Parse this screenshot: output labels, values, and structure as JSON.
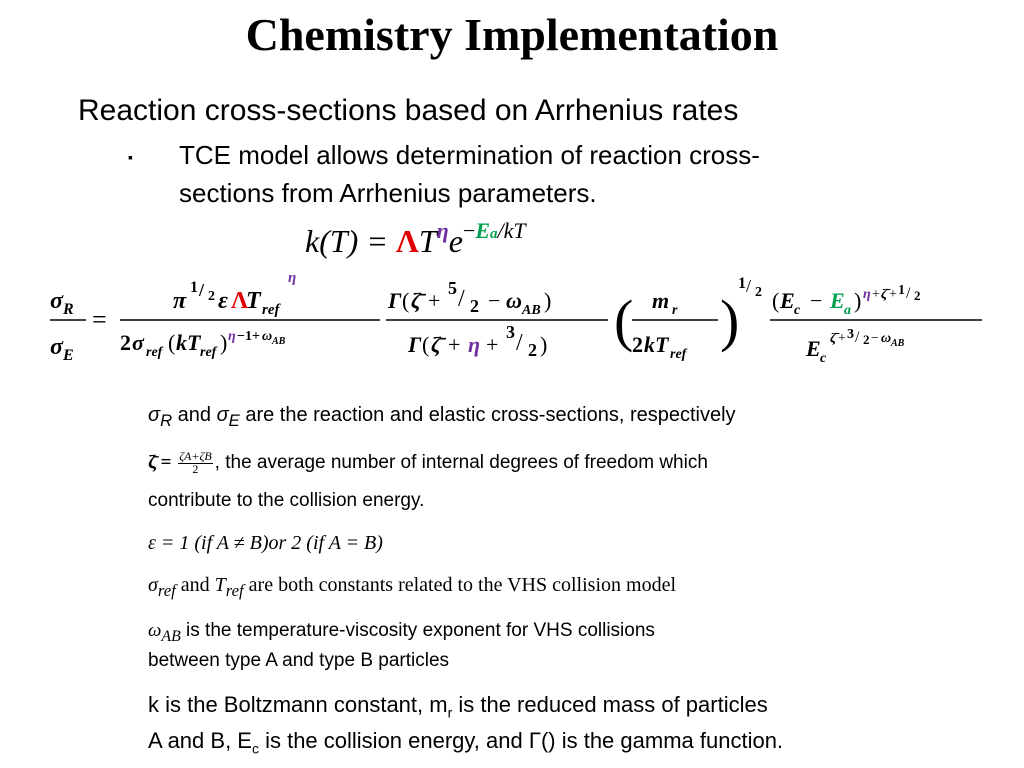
{
  "slide": {
    "title": "Chemistry Implementation",
    "heading": "Reaction cross-sections based on Arrhenius rates",
    "bullet_marker": "▪",
    "bullet_lines": [
      "TCE model allows determination of reaction cross-",
      "sections from Arrhenius parameters."
    ]
  },
  "formulas": {
    "arrhenius": {
      "lhs": "k(T) = ",
      "lambda": "Λ",
      "T": "T",
      "eta": "η",
      "e": "e",
      "minus": "−",
      "Ea": "E",
      "a_sub": "a",
      "over_kT": "/kT"
    }
  },
  "notes": {
    "n1_sigma": "σ",
    "n1_R": "R",
    "n1_and": " and ",
    "n1_E": "E",
    "n1_rest": " are the reaction and elastic cross-sections, respectively",
    "n2_zeta": "ζ̄ = ",
    "n2_num": "ζA+ζB",
    "n2_den": "2",
    "n2_rest": ", the average number of internal degrees of freedom which",
    "n2_line2": "contribute to the collision energy.",
    "n3": "ε = 1 (if A ≠ B)or 2 (if A = B)",
    "n4_sigma": "σ",
    "n4_ref1": "ref",
    "n4_and": " and ",
    "n4_T": "T",
    "n4_ref2": "ref",
    "n4_rest": " are both constants related to the VHS collision model",
    "n5_omega": "ω",
    "n5_AB": "AB",
    "n5_rest": " is the temperature-viscosity exponent for VHS collisions",
    "n5_line2": "between type A and type B particles",
    "n6_a": "k is the Boltzmann constant, m",
    "n6_r": "r",
    "n6_b": " is the reduced mass of particles",
    "n6_c": "A and B, E",
    "n6_cc": "c",
    "n6_d": " is the collision energy, and Γ() is the gamma function."
  },
  "colors": {
    "lambda_red": "#e00000",
    "eta_purple": "#7030a0",
    "Ea_green": "#00a050"
  }
}
